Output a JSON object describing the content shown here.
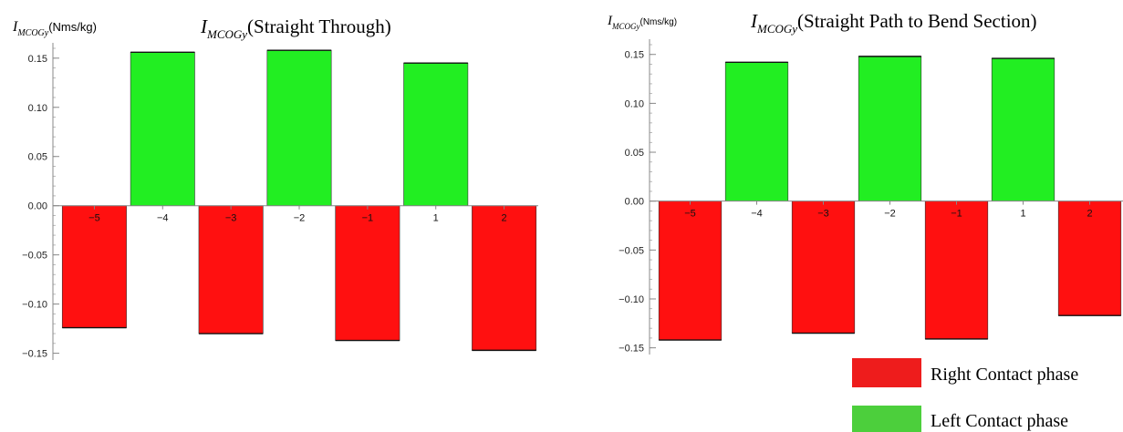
{
  "chart_data": [
    {
      "type": "bar",
      "title": "(Straight Through)",
      "title_symbol": "I",
      "title_symbol_sub": "MCOGy",
      "ylabel_symbol": "I",
      "ylabel_symbol_sub": "MCOGy",
      "ylabel_units": "(Nms/kg)",
      "categories": [
        "−5",
        "−4",
        "−3",
        "−2",
        "−1",
        "1",
        "2"
      ],
      "values": [
        -0.124,
        0.156,
        -0.13,
        0.158,
        -0.137,
        0.145,
        -0.147
      ],
      "phases": [
        "Right",
        "Left",
        "Right",
        "Left",
        "Right",
        "Left",
        "Right"
      ],
      "ylim": [
        -0.155,
        0.16
      ],
      "yticks": [
        "0.15",
        "0.10",
        "0.05",
        "0.00",
        "−0.05",
        "−0.10",
        "−0.15"
      ],
      "ytick_values": [
        0.15,
        0.1,
        0.05,
        0.0,
        -0.05,
        -0.1,
        -0.15
      ]
    },
    {
      "type": "bar",
      "title": "(Straight Path to Bend Section)",
      "title_symbol": "I",
      "title_symbol_sub": "MCOGy",
      "ylabel_symbol": "I",
      "ylabel_symbol_sub": "MCOGy",
      "ylabel_units": "(Nms/kg)",
      "categories": [
        "−5",
        "−4",
        "−3",
        "−2",
        "−1",
        "1",
        "2"
      ],
      "values": [
        -0.142,
        0.142,
        -0.135,
        0.148,
        -0.141,
        0.146,
        -0.117
      ],
      "phases": [
        "Right",
        "Left",
        "Right",
        "Left",
        "Right",
        "Left",
        "Right"
      ],
      "ylim": [
        -0.155,
        0.16
      ],
      "yticks": [
        "0.15",
        "0.10",
        "0.05",
        "0.00",
        "−0.05",
        "−0.10",
        "−0.15"
      ],
      "ytick_values": [
        0.15,
        0.1,
        0.05,
        0.0,
        -0.05,
        -0.1,
        -0.15
      ]
    }
  ],
  "legend": {
    "placement": "bottom-right",
    "items": [
      {
        "label": "Right Contact phase",
        "color": "#ee1c1c"
      },
      {
        "label": "Left Contact phase",
        "color": "#4ccf3c"
      }
    ]
  },
  "colors": {
    "right_bar": "#ff1010",
    "left_bar": "#22ee22",
    "axis": "#888888"
  }
}
